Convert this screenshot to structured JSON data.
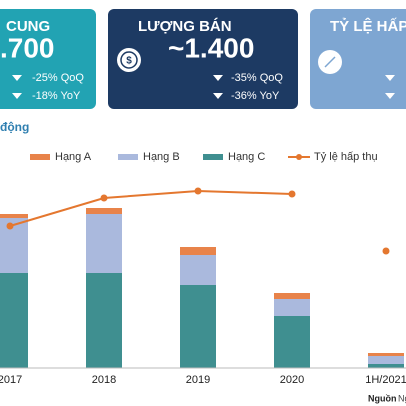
{
  "cards": [
    {
      "title": "CUNG",
      "value": ".700",
      "changes": [
        "-25% QoQ",
        "-18% YoY"
      ],
      "color": "#22a3b3"
    },
    {
      "title": "LƯỢNG BÁN",
      "value": "~1.400",
      "changes": [
        "-35% QoQ",
        "-36% YoY"
      ],
      "color": "#1d3a63"
    },
    {
      "title": "TỶ LỆ HẤP",
      "value": "",
      "changes": [],
      "color": "#7ea6d2"
    }
  ],
  "section_title": "động",
  "source": {
    "label": "Nguồn",
    "text": "Nghiên c"
  },
  "chart_data": {
    "type": "bar",
    "stacked": true,
    "categories": [
      "2017",
      "2018",
      "2019",
      "2020",
      "1H/2021"
    ],
    "ylim": [
      0,
      180
    ],
    "series": [
      {
        "name": "Hạng A",
        "color": "#e8834a",
        "values": [
          4,
          6,
          8,
          6,
          3
        ]
      },
      {
        "name": "Hạng B",
        "color": "#aab9dd",
        "values": [
          55,
          59,
          30,
          17,
          8
        ]
      },
      {
        "name": "Hạng C",
        "color": "#3f8f90",
        "values": [
          95,
          95,
          83,
          52,
          4
        ]
      },
      {
        "name": "Tỷ lệ hấp thụ",
        "color": "#e4772f",
        "type": "line",
        "values": [
          142,
          170,
          177,
          174,
          117
        ],
        "connected_points": 4
      }
    ]
  }
}
